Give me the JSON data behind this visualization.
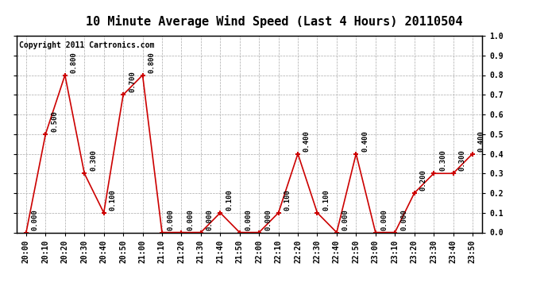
{
  "title": "10 Minute Average Wind Speed (Last 4 Hours) 20110504",
  "copyright_text": "Copyright 2011 Cartronics.com",
  "x_labels": [
    "20:00",
    "20:10",
    "20:20",
    "20:30",
    "20:40",
    "20:50",
    "21:00",
    "21:10",
    "21:20",
    "21:30",
    "21:40",
    "21:50",
    "22:00",
    "22:10",
    "22:20",
    "22:30",
    "22:40",
    "22:50",
    "23:00",
    "23:10",
    "23:20",
    "23:30",
    "23:40",
    "23:50"
  ],
  "y_values": [
    0.0,
    0.5,
    0.8,
    0.3,
    0.1,
    0.7,
    0.8,
    0.0,
    0.0,
    0.0,
    0.1,
    0.0,
    0.0,
    0.1,
    0.4,
    0.1,
    0.0,
    0.4,
    0.0,
    0.0,
    0.2,
    0.3,
    0.3,
    0.4
  ],
  "line_color": "#cc0000",
  "marker_color": "#cc0000",
  "bg_color": "#ffffff",
  "plot_bg_color": "#ffffff",
  "grid_color": "#aaaaaa",
  "ylim": [
    0.0,
    1.0
  ],
  "yticks_right": [
    0.0,
    0.1,
    0.2,
    0.3,
    0.4,
    0.5,
    0.6,
    0.7,
    0.8,
    0.9,
    1.0
  ],
  "title_fontsize": 11,
  "annotation_fontsize": 6.5,
  "tick_fontsize": 7,
  "copyright_fontsize": 7
}
